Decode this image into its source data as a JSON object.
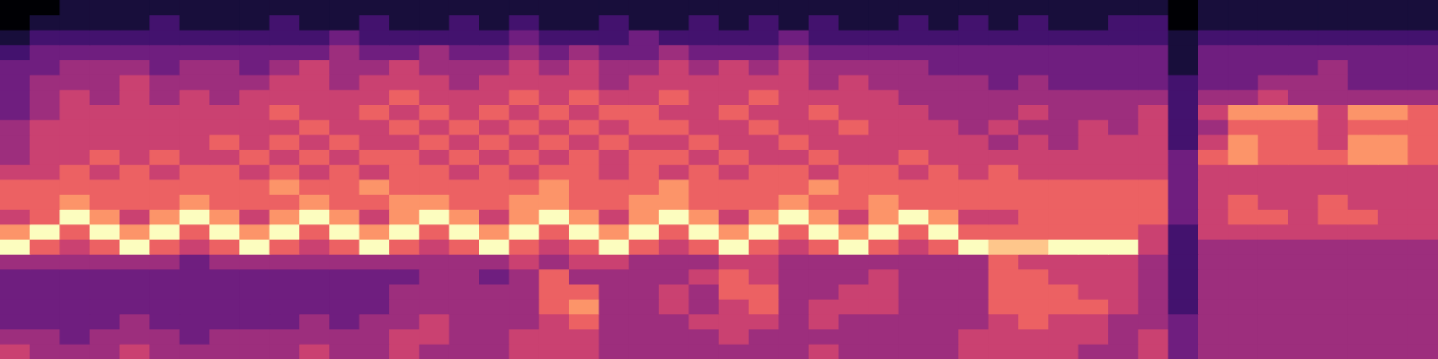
{
  "chart_data": {
    "type": "heatmap",
    "color": "magma",
    "tick_labels": false,
    "zlim": [
      0,
      9
    ],
    "cells": [
      [
        0,
        0,
        1,
        1,
        1,
        1,
        1,
        1,
        1,
        1,
        1,
        1,
        1,
        1,
        1,
        1,
        1,
        1,
        1,
        1,
        1,
        1,
        1,
        1,
        1,
        1,
        1,
        1,
        1,
        1,
        1,
        1,
        1,
        1,
        1,
        1,
        1,
        1,
        1,
        0,
        1,
        1,
        1,
        1,
        1,
        1,
        1,
        1
      ],
      [
        0,
        1,
        1,
        1,
        1,
        2,
        1,
        1,
        1,
        2,
        1,
        1,
        2,
        1,
        1,
        2,
        1,
        2,
        1,
        1,
        2,
        1,
        1,
        2,
        1,
        2,
        1,
        2,
        1,
        1,
        2,
        1,
        2,
        1,
        2,
        1,
        1,
        2,
        2,
        0,
        1,
        1,
        1,
        1,
        1,
        1,
        1,
        1
      ],
      [
        1,
        2,
        2,
        2,
        2,
        2,
        2,
        2,
        2,
        2,
        2,
        3,
        2,
        2,
        2,
        2,
        2,
        3,
        2,
        2,
        2,
        3,
        2,
        2,
        2,
        2,
        3,
        2,
        2,
        2,
        2,
        2,
        2,
        2,
        2,
        2,
        2,
        2,
        2,
        1,
        2,
        2,
        2,
        2,
        2,
        2,
        2,
        2
      ],
      [
        2,
        3,
        3,
        3,
        3,
        3,
        3,
        3,
        3,
        3,
        3,
        4,
        3,
        3,
        4,
        3,
        3,
        4,
        3,
        4,
        3,
        3,
        4,
        3,
        3,
        3,
        4,
        3,
        3,
        3,
        3,
        3,
        3,
        3,
        3,
        3,
        3,
        3,
        3,
        1,
        3,
        3,
        3,
        3,
        3,
        3,
        3,
        3
      ],
      [
        3,
        3,
        4,
        4,
        4,
        3,
        4,
        4,
        3,
        4,
        5,
        4,
        4,
        5,
        4,
        4,
        4,
        5,
        4,
        5,
        4,
        4,
        5,
        4,
        5,
        4,
        5,
        4,
        4,
        4,
        4,
        3,
        3,
        3,
        3,
        3,
        3,
        3,
        3,
        1,
        3,
        3,
        3,
        3,
        4,
        3,
        3,
        3
      ],
      [
        3,
        4,
        4,
        4,
        5,
        4,
        4,
        4,
        4,
        5,
        5,
        4,
        5,
        5,
        5,
        4,
        5,
        5,
        5,
        5,
        4,
        5,
        5,
        5,
        5,
        5,
        5,
        4,
        5,
        4,
        4,
        4,
        4,
        3,
        4,
        3,
        3,
        3,
        3,
        2,
        3,
        3,
        4,
        4,
        4,
        3,
        3,
        3
      ],
      [
        3,
        4,
        5,
        4,
        5,
        4,
        5,
        4,
        5,
        5,
        5,
        5,
        5,
        6,
        5,
        5,
        5,
        6,
        5,
        6,
        5,
        5,
        6,
        5,
        5,
        6,
        5,
        5,
        5,
        5,
        4,
        4,
        4,
        4,
        4,
        4,
        4,
        4,
        4,
        2,
        4,
        4,
        5,
        4,
        4,
        4,
        4,
        4
      ],
      [
        3,
        4,
        5,
        5,
        5,
        5,
        5,
        5,
        5,
        6,
        5,
        5,
        6,
        5,
        6,
        5,
        6,
        5,
        6,
        5,
        6,
        6,
        5,
        5,
        6,
        5,
        5,
        6,
        5,
        5,
        5,
        4,
        4,
        4,
        5,
        4,
        4,
        4,
        5,
        2,
        5,
        7,
        7,
        7,
        5,
        7,
        7,
        6
      ],
      [
        4,
        5,
        5,
        5,
        5,
        5,
        5,
        5,
        5,
        5,
        6,
        5,
        5,
        6,
        5,
        6,
        5,
        6,
        5,
        6,
        5,
        6,
        6,
        5,
        5,
        6,
        5,
        5,
        6,
        5,
        5,
        5,
        4,
        5,
        4,
        4,
        5,
        4,
        5,
        2,
        4,
        6,
        6,
        6,
        5,
        6,
        6,
        6
      ],
      [
        4,
        5,
        5,
        5,
        5,
        5,
        5,
        6,
        5,
        6,
        5,
        6,
        5,
        5,
        6,
        5,
        6,
        5,
        6,
        5,
        6,
        5,
        5,
        6,
        5,
        5,
        6,
        5,
        5,
        5,
        5,
        5,
        5,
        4,
        5,
        4,
        5,
        5,
        5,
        2,
        5,
        7,
        6,
        6,
        5,
        7,
        7,
        6
      ],
      [
        4,
        5,
        5,
        6,
        5,
        6,
        5,
        5,
        6,
        5,
        6,
        5,
        6,
        6,
        5,
        6,
        5,
        6,
        5,
        6,
        5,
        6,
        6,
        5,
        6,
        5,
        5,
        6,
        5,
        5,
        6,
        5,
        5,
        5,
        5,
        5,
        5,
        5,
        5,
        3,
        6,
        7,
        6,
        6,
        6,
        7,
        7,
        6
      ],
      [
        5,
        5,
        6,
        5,
        6,
        5,
        6,
        6,
        5,
        6,
        5,
        6,
        5,
        6,
        6,
        5,
        6,
        5,
        6,
        6,
        5,
        6,
        5,
        6,
        5,
        6,
        6,
        5,
        6,
        6,
        5,
        6,
        5,
        6,
        5,
        5,
        5,
        5,
        5,
        3,
        5,
        5,
        5,
        5,
        5,
        5,
        5,
        5
      ],
      [
        6,
        6,
        6,
        6,
        6,
        6,
        6,
        6,
        6,
        7,
        6,
        6,
        7,
        6,
        6,
        6,
        6,
        6,
        7,
        6,
        6,
        6,
        7,
        6,
        6,
        6,
        6,
        7,
        6,
        6,
        6,
        6,
        6,
        6,
        6,
        6,
        6,
        6,
        6,
        3,
        5,
        5,
        5,
        5,
        5,
        5,
        5,
        5
      ],
      [
        6,
        6,
        7,
        6,
        6,
        6,
        7,
        6,
        6,
        6,
        7,
        6,
        6,
        7,
        7,
        6,
        6,
        7,
        7,
        6,
        6,
        7,
        7,
        6,
        6,
        6,
        7,
        6,
        6,
        7,
        6,
        6,
        6,
        6,
        6,
        6,
        6,
        6,
        6,
        3,
        5,
        6,
        5,
        5,
        6,
        5,
        5,
        5
      ],
      [
        5,
        6,
        9,
        7,
        5,
        7,
        9,
        7,
        5,
        7,
        9,
        7,
        5,
        7,
        9,
        7,
        5,
        7,
        9,
        7,
        5,
        7,
        9,
        7,
        5,
        7,
        9,
        7,
        5,
        7,
        9,
        7,
        5,
        5,
        6,
        6,
        6,
        6,
        6,
        3,
        5,
        6,
        6,
        5,
        6,
        6,
        5,
        5
      ],
      [
        7,
        9,
        6,
        9,
        7,
        9,
        6,
        9,
        7,
        9,
        6,
        9,
        7,
        9,
        6,
        9,
        7,
        9,
        6,
        9,
        7,
        9,
        6,
        9,
        7,
        9,
        6,
        9,
        7,
        9,
        6,
        9,
        6,
        6,
        6,
        6,
        6,
        6,
        5,
        2,
        5,
        5,
        5,
        5,
        5,
        5,
        5,
        5
      ],
      [
        9,
        6,
        5,
        6,
        9,
        6,
        5,
        6,
        9,
        6,
        5,
        6,
        9,
        6,
        5,
        6,
        9,
        6,
        5,
        6,
        9,
        6,
        5,
        6,
        9,
        6,
        5,
        6,
        9,
        6,
        5,
        6,
        9,
        8,
        8,
        9,
        9,
        9,
        5,
        2,
        4,
        4,
        4,
        4,
        4,
        4,
        4,
        4
      ],
      [
        4,
        4,
        4,
        4,
        4,
        4,
        3,
        4,
        4,
        4,
        4,
        4,
        4,
        4,
        4,
        4,
        4,
        5,
        4,
        5,
        5,
        4,
        4,
        4,
        5,
        5,
        4,
        4,
        4,
        4,
        4,
        4,
        4,
        6,
        5,
        5,
        5,
        5,
        4,
        2,
        4,
        4,
        4,
        4,
        4,
        4,
        4,
        4
      ],
      [
        3,
        3,
        3,
        3,
        3,
        3,
        3,
        3,
        3,
        3,
        3,
        3,
        3,
        3,
        4,
        4,
        3,
        4,
        6,
        4,
        4,
        4,
        4,
        5,
        6,
        5,
        4,
        4,
        4,
        5,
        4,
        4,
        4,
        6,
        6,
        5,
        5,
        5,
        4,
        2,
        4,
        4,
        4,
        4,
        4,
        4,
        4,
        4
      ],
      [
        3,
        3,
        3,
        3,
        3,
        3,
        3,
        3,
        3,
        3,
        3,
        3,
        3,
        4,
        4,
        4,
        4,
        4,
        6,
        6,
        4,
        4,
        5,
        4,
        6,
        6,
        4,
        4,
        5,
        5,
        4,
        4,
        4,
        6,
        6,
        6,
        5,
        5,
        4,
        2,
        4,
        4,
        4,
        4,
        4,
        4,
        4,
        4
      ],
      [
        3,
        3,
        3,
        3,
        3,
        3,
        3,
        3,
        3,
        3,
        3,
        3,
        3,
        4,
        4,
        4,
        4,
        4,
        6,
        7,
        4,
        4,
        5,
        4,
        5,
        6,
        4,
        5,
        5,
        5,
        4,
        4,
        4,
        6,
        6,
        6,
        6,
        5,
        4,
        2,
        4,
        4,
        4,
        4,
        4,
        4,
        4,
        4
      ],
      [
        3,
        3,
        3,
        3,
        4,
        3,
        3,
        3,
        3,
        3,
        4,
        3,
        4,
        4,
        5,
        4,
        4,
        4,
        5,
        6,
        4,
        4,
        4,
        5,
        5,
        5,
        4,
        5,
        4,
        4,
        4,
        4,
        4,
        5,
        6,
        5,
        5,
        4,
        4,
        3,
        4,
        4,
        4,
        4,
        4,
        4,
        4,
        4
      ],
      [
        4,
        4,
        3,
        4,
        4,
        4,
        3,
        4,
        4,
        4,
        4,
        4,
        4,
        5,
        5,
        4,
        4,
        5,
        5,
        5,
        4,
        4,
        4,
        4,
        5,
        4,
        4,
        4,
        4,
        4,
        4,
        4,
        5,
        5,
        5,
        5,
        5,
        4,
        5,
        3,
        4,
        4,
        4,
        4,
        4,
        4,
        4,
        4
      ],
      [
        5,
        4,
        4,
        4,
        5,
        4,
        4,
        4,
        4,
        4,
        5,
        4,
        4,
        5,
        4,
        4,
        4,
        5,
        5,
        5,
        4,
        4,
        4,
        4,
        4,
        4,
        4,
        5,
        4,
        4,
        4,
        4,
        5,
        5,
        5,
        5,
        4,
        4,
        5,
        3,
        4,
        4,
        4,
        4,
        4,
        4,
        4,
        4
      ]
    ]
  }
}
